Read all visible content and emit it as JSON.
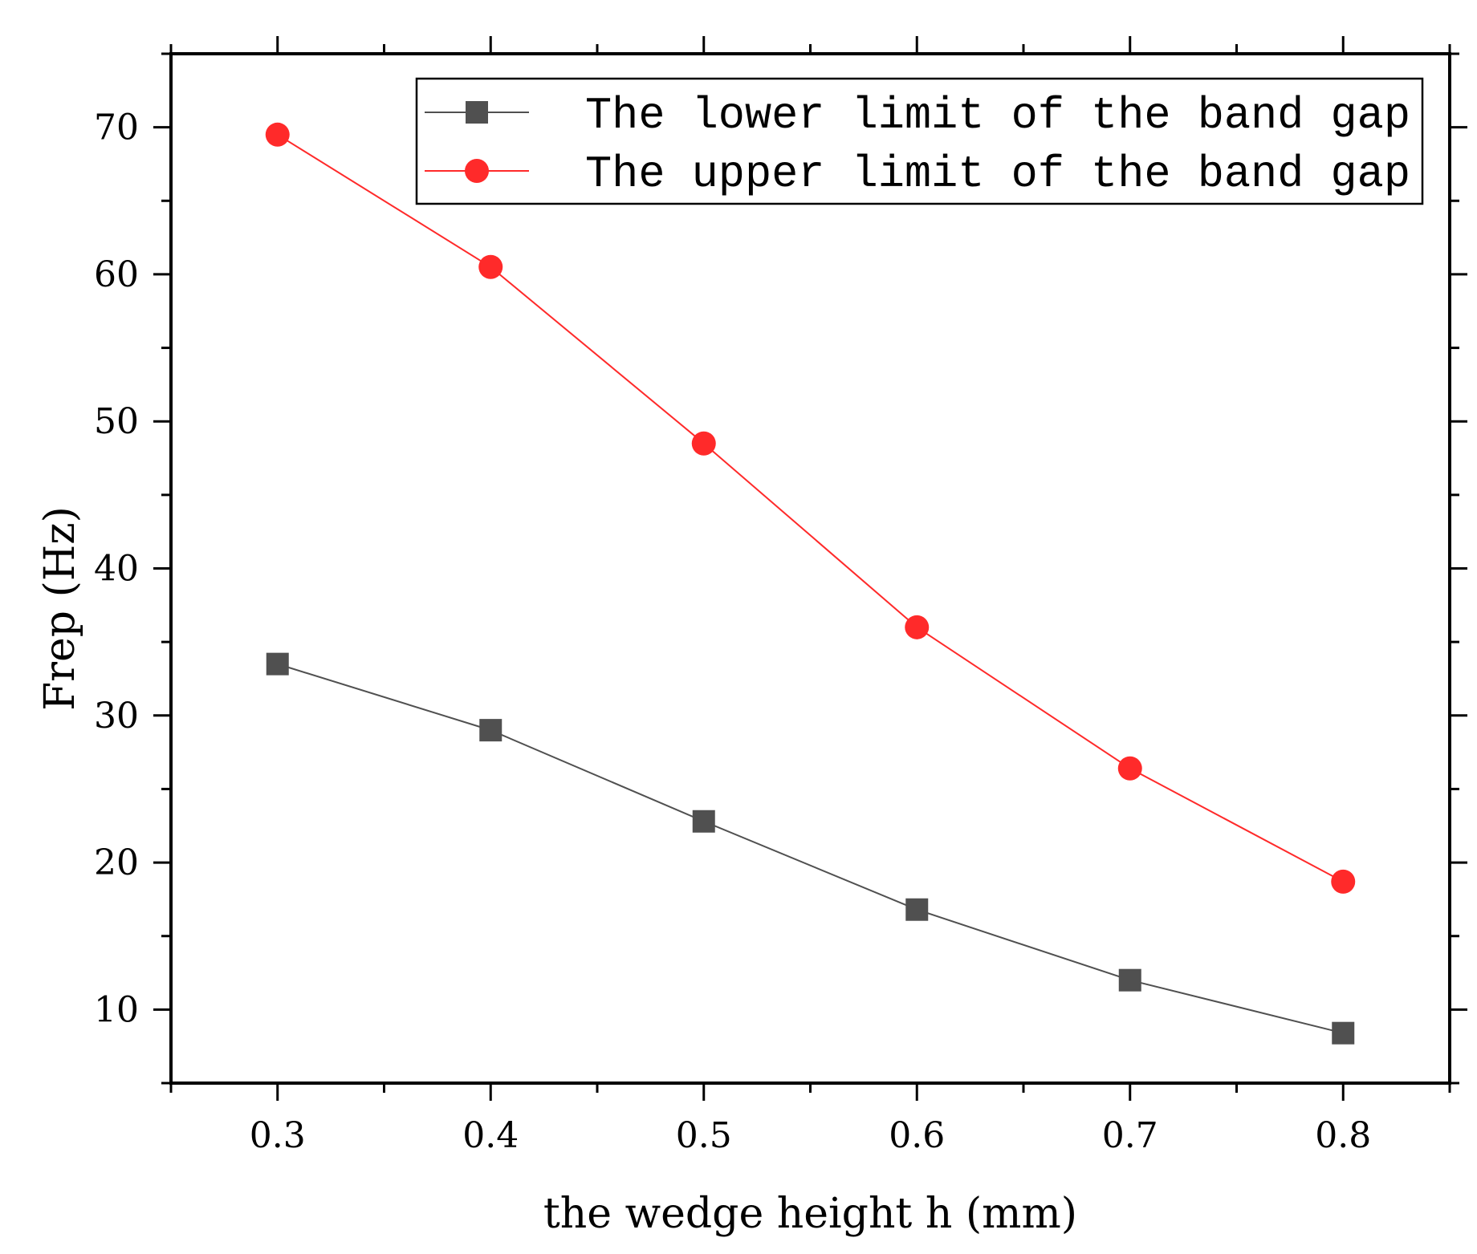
{
  "chart_data": {
    "type": "line",
    "xlabel": "the wedge height h (mm)",
    "ylabel": "Frep (Hz)",
    "xlim": [
      0.25,
      0.85
    ],
    "ylim": [
      5,
      75
    ],
    "x": [
      0.3,
      0.4,
      0.5,
      0.6,
      0.7,
      0.8
    ],
    "x_ticks": [
      0.3,
      0.4,
      0.5,
      0.6,
      0.7,
      0.8
    ],
    "x_tick_labels": [
      "0.3",
      "0.4",
      "0.5",
      "0.6",
      "0.7",
      "0.8"
    ],
    "y_ticks": [
      10,
      20,
      30,
      40,
      50,
      60,
      70
    ],
    "y_tick_labels": [
      "10",
      "20",
      "30",
      "40",
      "50",
      "60",
      "70"
    ],
    "legend_position": "top-right",
    "series": [
      {
        "name": "The lower limit of the band gap",
        "marker": "square",
        "color": "#505050",
        "values": [
          33.5,
          29.0,
          22.8,
          16.8,
          12.0,
          8.4
        ]
      },
      {
        "name": "The upper limit of the band gap",
        "marker": "circle",
        "color": "#ff2a2a",
        "values": [
          69.5,
          60.5,
          48.5,
          36.0,
          26.4,
          18.7
        ]
      }
    ]
  }
}
